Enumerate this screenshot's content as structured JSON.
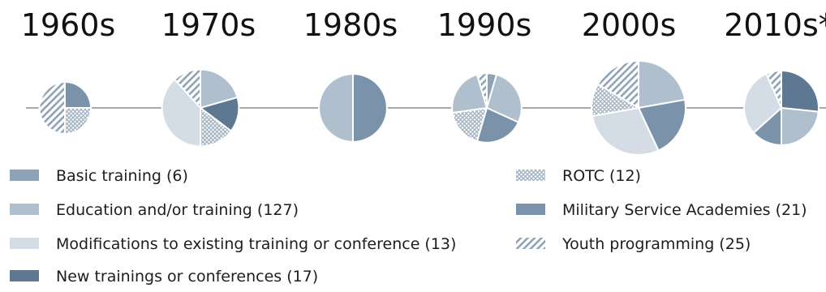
{
  "chart_data": {
    "type": "pie",
    "title": "",
    "decades": [
      "1960s",
      "1970s",
      "1980s",
      "1990s",
      "2000s",
      "2010s*"
    ],
    "categories": [
      "Basic training",
      "Education and/or training",
      "Modifications to existing training or conference",
      "New trainings or conferences",
      "ROTC",
      "Military Service Academies",
      "Youth programming"
    ],
    "legend": [
      {
        "label": "Basic training (6)",
        "category": "Basic training",
        "count": 6,
        "color": "#8ea3b8",
        "pattern": "solid"
      },
      {
        "label": "Education and/or training (127)",
        "category": "Education and/or training",
        "count": 127,
        "color": "#b0bfcd",
        "pattern": "solid"
      },
      {
        "label": "Modifications to existing training or conference (13)",
        "category": "Modifications to existing training or conference",
        "count": 13,
        "color": "#d4dde6",
        "pattern": "solid"
      },
      {
        "label": "New trainings or conferences (17)",
        "category": "New trainings or conferences",
        "count": 17,
        "color": "#5d7890",
        "pattern": "solid"
      },
      {
        "label": "ROTC (12)",
        "category": "ROTC",
        "count": 12,
        "color": "#9fb0c1",
        "pattern": "crosshatch"
      },
      {
        "label": "Military Service Academies (21)",
        "category": "Military Service Academies",
        "count": 21,
        "color": "#7a93ab",
        "pattern": "solid"
      },
      {
        "label": "Youth programming (25)",
        "category": "Youth programming",
        "count": 25,
        "color": "#8ea3b8",
        "pattern": "diagonal"
      }
    ],
    "pies": [
      {
        "decade": "1960s",
        "total": 4,
        "slices": [
          {
            "category": "Military Service Academies",
            "value": 1
          },
          {
            "category": "ROTC",
            "value": 1
          },
          {
            "category": "Youth programming",
            "value": 2
          }
        ]
      },
      {
        "decade": "1970s",
        "total": 34,
        "slices": [
          {
            "category": "Education and/or training",
            "value": 7
          },
          {
            "category": "New trainings or conferences",
            "value": 5
          },
          {
            "category": "ROTC",
            "value": 5
          },
          {
            "category": "Modifications to existing training or conference",
            "value": 13
          },
          {
            "category": "Youth programming",
            "value": 4
          }
        ]
      },
      {
        "decade": "1980s",
        "total": 20,
        "slices": [
          {
            "category": "Military Service Academies",
            "value": 10
          },
          {
            "category": "Education and/or training",
            "value": 10
          }
        ]
      },
      {
        "decade": "1990s",
        "total": 22,
        "slices": [
          {
            "category": "Basic training",
            "value": 1
          },
          {
            "category": "Education and/or training",
            "value": 6
          },
          {
            "category": "Military Service Academies",
            "value": 5
          },
          {
            "category": "ROTC",
            "value": 4
          },
          {
            "category": "Education and/or training",
            "value": 5
          },
          {
            "category": "Youth programming",
            "value": 1
          }
        ]
      },
      {
        "decade": "2000s",
        "total": 72,
        "slices": [
          {
            "category": "Education and/or training",
            "value": 16
          },
          {
            "category": "Military Service Academies",
            "value": 15
          },
          {
            "category": "Modifications to existing training or conference",
            "value": 21
          },
          {
            "category": "ROTC",
            "value": 8
          },
          {
            "category": "Youth programming",
            "value": 12
          }
        ]
      },
      {
        "decade": "2010s*",
        "total": 30,
        "slices": [
          {
            "category": "New trainings or conferences",
            "value": 8
          },
          {
            "category": "Education and/or training",
            "value": 7
          },
          {
            "category": "Military Service Academies",
            "value": 4
          },
          {
            "category": "Modifications to existing training or conference",
            "value": 9
          },
          {
            "category": "Youth programming",
            "value": 2
          }
        ]
      }
    ]
  }
}
